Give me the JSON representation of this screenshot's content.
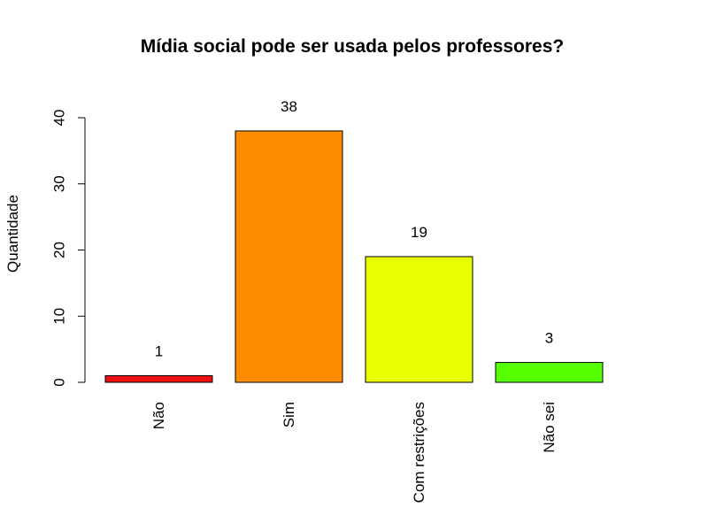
{
  "chart_data": {
    "type": "bar",
    "title": "Mídia social pode ser usada pelos professores?",
    "xlabel": "",
    "ylabel": "Quantidade",
    "categories": [
      "Não",
      "Sim",
      "Com restrições",
      "Não sei"
    ],
    "values": [
      1,
      38,
      19,
      3
    ],
    "data_labels": [
      "1",
      "38",
      "19",
      "3"
    ],
    "colors": [
      "#ee1111",
      "#ff8c00",
      "#e8ff00",
      "#55ff00"
    ],
    "ylim": [
      0,
      40
    ],
    "yticks": [
      0,
      10,
      20,
      30,
      40
    ],
    "grid": false,
    "legend": "none"
  }
}
